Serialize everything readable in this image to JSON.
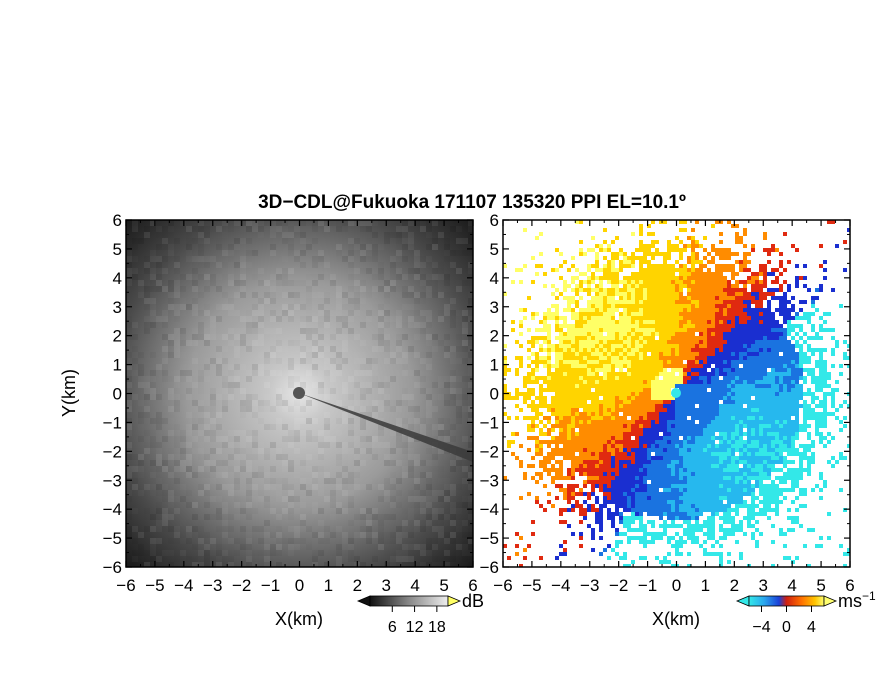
{
  "title": "3D−CDL@Fukuoka 171107 135320 PPI EL=10.1º",
  "colors": {
    "reflectivity_low": "#141414",
    "reflectivity_high": "#dcdcdc",
    "velocity_neg_far": "#33e8e8",
    "velocity_neg_mid": "#1a73e0",
    "velocity_neg_near": "#1a2fd0",
    "velocity_zero": "#e02a10",
    "velocity_pos_mid": "#ff8c00",
    "velocity_pos_high": "#ffd400",
    "velocity_pos_max": "#ffff66"
  },
  "chart_data": [
    {
      "type": "heatmap",
      "panel": "left",
      "quantity": "signal-to-noise ratio",
      "xlabel": "X(km)",
      "ylabel": "Y(km)",
      "xlim": [
        -6,
        6
      ],
      "ylim": [
        -6,
        6
      ],
      "xticks": [
        "−6",
        "−5",
        "−4",
        "−3",
        "−2",
        "−1",
        "0",
        "1",
        "2",
        "3",
        "4",
        "5",
        "6"
      ],
      "yticks": [
        "6",
        "5",
        "4",
        "3",
        "2",
        "1",
        "0",
        "−1",
        "−2",
        "−3",
        "−4",
        "−5",
        "−6"
      ],
      "colorbar": {
        "unit": "dB",
        "ticks": [
          "6",
          "12",
          "18"
        ],
        "range": [
          0,
          21
        ]
      }
    },
    {
      "type": "heatmap",
      "panel": "right",
      "quantity": "Doppler velocity",
      "xlabel": "X(km)",
      "ylabel": "",
      "xlim": [
        -6,
        6
      ],
      "ylim": [
        -6,
        6
      ],
      "xticks": [
        "−6",
        "−5",
        "−4",
        "−3",
        "−2",
        "−1",
        "0",
        "1",
        "2",
        "3",
        "4",
        "5",
        "6"
      ],
      "yticks": [
        "6",
        "5",
        "4",
        "3",
        "2",
        "1",
        "0",
        "−1",
        "−2",
        "−3",
        "−4",
        "−5",
        "−6"
      ],
      "colorbar": {
        "unit": "ms",
        "unit_exp": "−1",
        "ticks": [
          "−4",
          "0",
          "4"
        ],
        "range": [
          -6,
          6
        ]
      }
    }
  ]
}
